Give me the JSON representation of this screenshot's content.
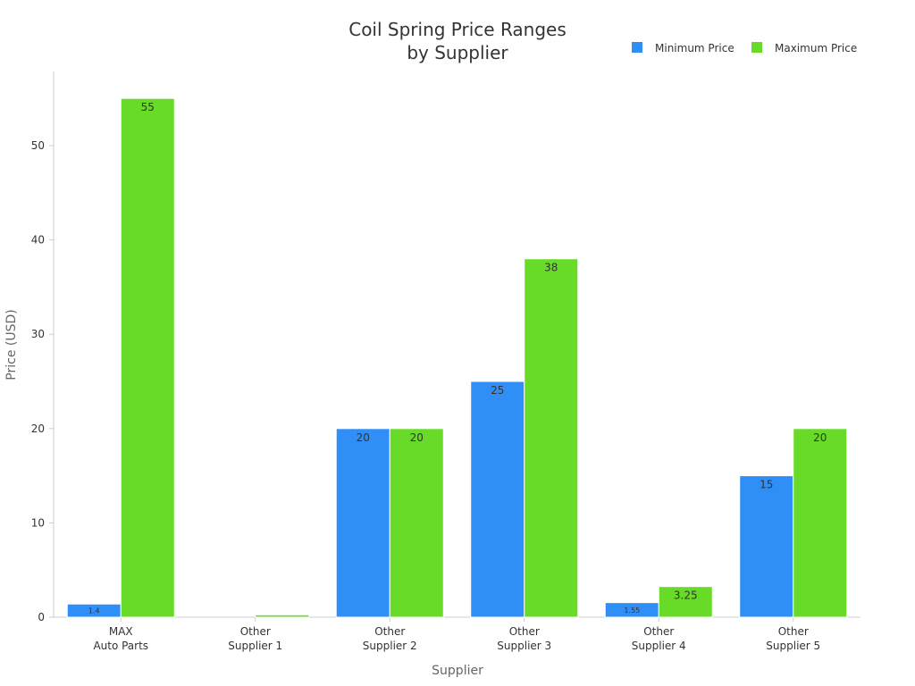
{
  "chart_data": {
    "type": "bar",
    "title": [
      "Coil Spring Price Ranges",
      "by Supplier"
    ],
    "xlabel": "Supplier",
    "ylabel": "Price (USD)",
    "ylim": [
      0,
      58
    ],
    "yticks": [
      0,
      10,
      20,
      30,
      40,
      50
    ],
    "categories": [
      [
        "MAX",
        "Auto Parts"
      ],
      [
        "Other",
        "Supplier 1"
      ],
      [
        "Other",
        "Supplier 2"
      ],
      [
        "Other",
        "Supplier 3"
      ],
      [
        "Other",
        "Supplier 4"
      ],
      [
        "Other",
        "Supplier 5"
      ]
    ],
    "series": [
      {
        "name": "Minimum Price",
        "color": "#2f8ff7",
        "values": [
          1.4,
          0,
          20,
          25,
          1.55,
          15
        ],
        "labels": [
          "1.4",
          "",
          "20",
          "25",
          "1.55",
          "15"
        ]
      },
      {
        "name": "Maximum Price",
        "color": "#67db27",
        "values": [
          55,
          0.25,
          20,
          38,
          3.25,
          20
        ],
        "labels": [
          "55",
          "",
          "20",
          "38",
          "3.25",
          "20"
        ]
      }
    ],
    "legend": "top-right",
    "grid": false
  }
}
